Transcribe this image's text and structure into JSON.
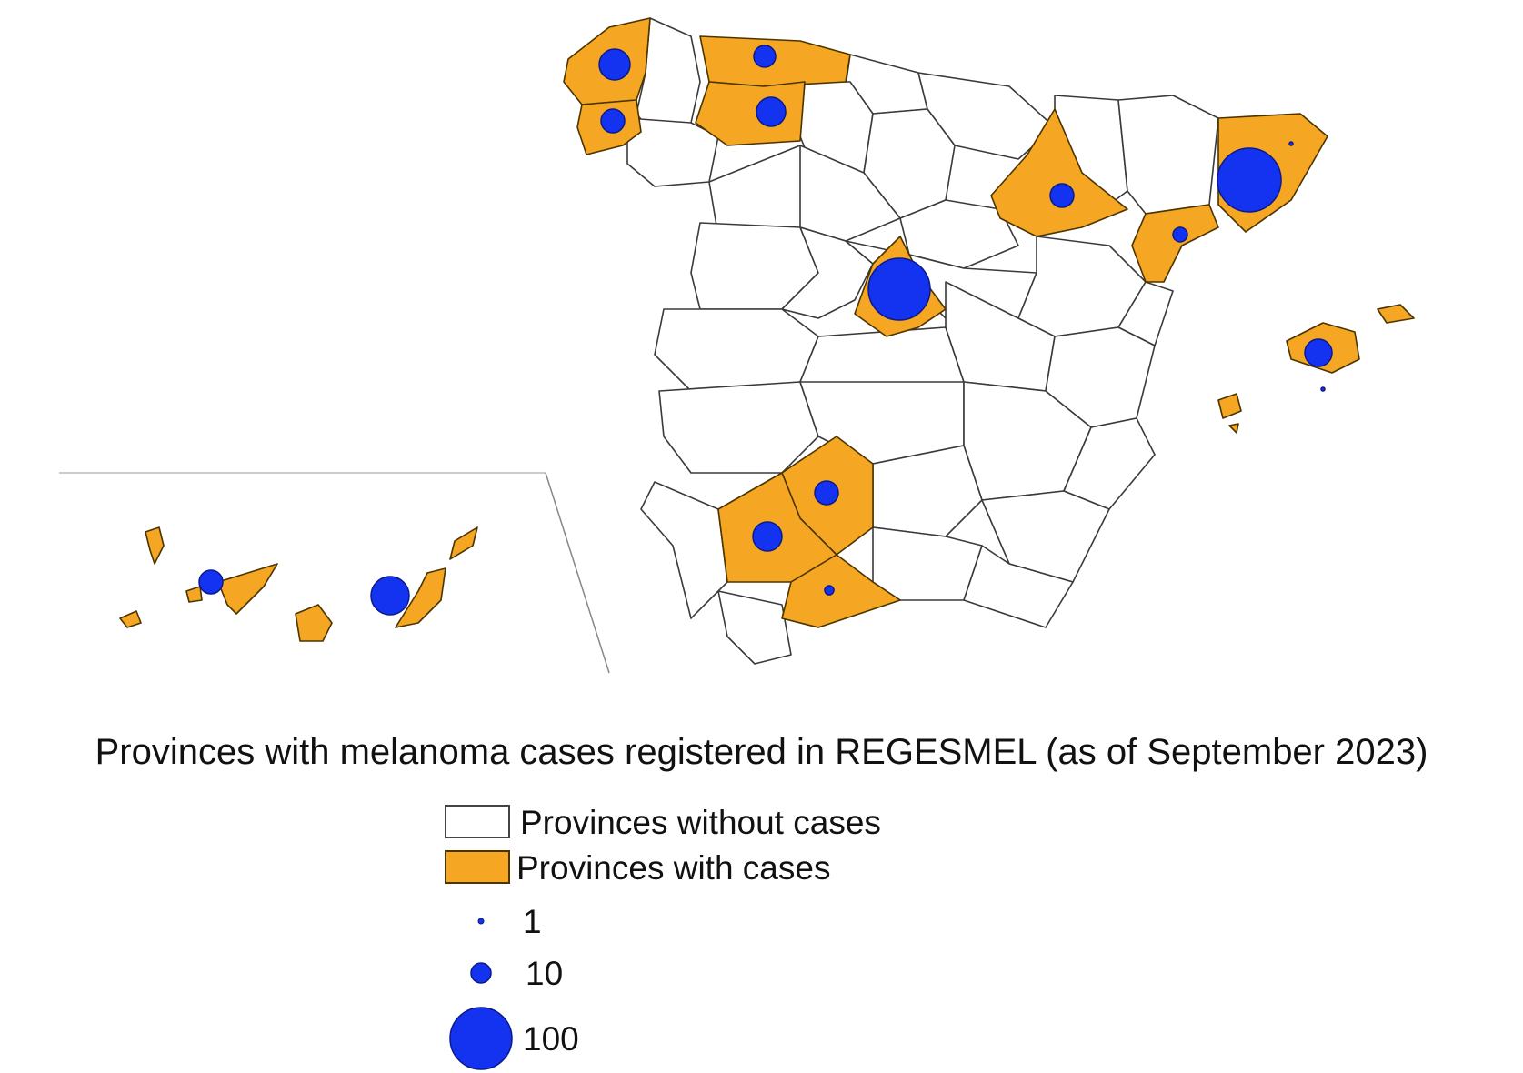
{
  "title": "Provinces with melanoma cases registered in REGESMEL (as of September 2023)",
  "legend": {
    "without_cases": "Provinces without cases",
    "with_cases": "Provinces with cases",
    "sizes": [
      {
        "label": "1",
        "value": 1
      },
      {
        "label": "10",
        "value": 10
      },
      {
        "label": "100",
        "value": 100
      }
    ]
  },
  "colors": {
    "with_cases_fill": "#f5a623",
    "without_cases_fill": "#ffffff",
    "circle_fill": "#1433f0"
  }
}
